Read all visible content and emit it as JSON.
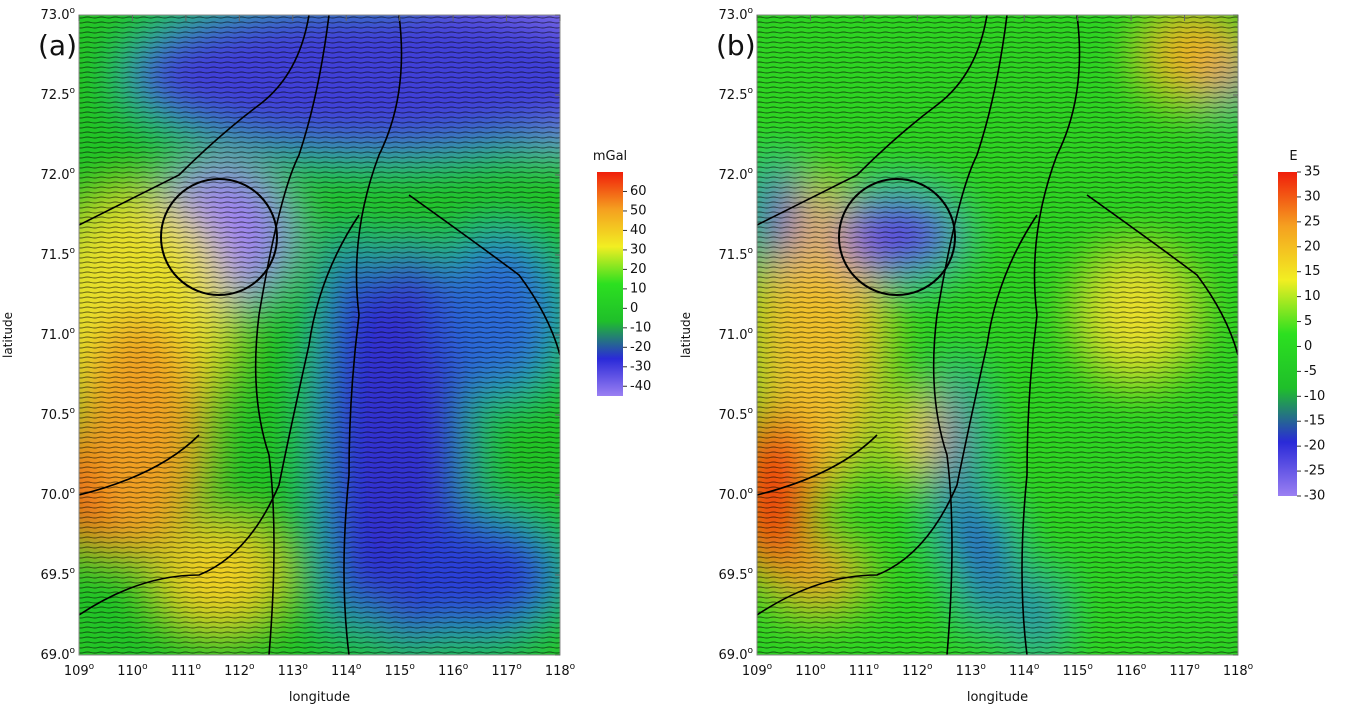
{
  "panels": [
    {
      "label": "(a)",
      "y_label": "latitude",
      "x_label": "longitude",
      "tick_suffix": "o",
      "ylim": [
        69,
        73
      ],
      "yticks": [
        {
          "value": 73,
          "label": "73.0"
        },
        {
          "value": 72.5,
          "label": "72.5"
        },
        {
          "value": 72,
          "label": "72.0"
        },
        {
          "value": 71.5,
          "label": "71.5"
        },
        {
          "value": 71,
          "label": "71.0"
        },
        {
          "value": 70.5,
          "label": "70.5"
        },
        {
          "value": 70,
          "label": "70.0"
        },
        {
          "value": 69.5,
          "label": "69.5"
        },
        {
          "value": 69,
          "label": "69.0"
        }
      ],
      "xlim": [
        109,
        118
      ],
      "xticks": [
        109,
        110,
        111,
        112,
        113,
        114,
        115,
        116,
        117,
        118
      ],
      "colorbar": {
        "title": "mGal",
        "lim": [
          -45,
          70
        ],
        "ticks": [
          60,
          50,
          40,
          30,
          20,
          10,
          0,
          -10,
          -20,
          -30,
          -40
        ],
        "colors": [
          "#9b80f2",
          "#2a2ad8",
          "#1fbf2a",
          "#2ce020",
          "#f2ee22",
          "#f5a020",
          "#f01e0a"
        ]
      }
    },
    {
      "label": "(b)",
      "y_label": "latitude",
      "x_label": "longitude",
      "tick_suffix": "o",
      "ylim": [
        69,
        73
      ],
      "yticks": [
        {
          "value": 73,
          "label": "73.0"
        },
        {
          "value": 72.5,
          "label": "72.5"
        },
        {
          "value": 72,
          "label": "72.0"
        },
        {
          "value": 71.5,
          "label": "71.5"
        },
        {
          "value": 71,
          "label": "71.0"
        },
        {
          "value": 70.5,
          "label": "70.5"
        },
        {
          "value": 70,
          "label": "70.0"
        },
        {
          "value": 69.5,
          "label": "69.5"
        },
        {
          "value": 69,
          "label": "69.0"
        }
      ],
      "xlim": [
        109,
        118
      ],
      "xticks": [
        109,
        110,
        111,
        112,
        113,
        114,
        115,
        116,
        117,
        118
      ],
      "colorbar": {
        "title": "E",
        "lim": [
          -30,
          35
        ],
        "ticks": [
          35,
          30,
          25,
          20,
          15,
          10,
          5,
          0,
          -5,
          -10,
          -15,
          -20,
          -25,
          -30
        ],
        "colors": [
          "#9b80f2",
          "#2a2ad8",
          "#1fbf2a",
          "#2ce020",
          "#f2ee22",
          "#f5a020",
          "#f01e0a"
        ]
      }
    }
  ]
}
